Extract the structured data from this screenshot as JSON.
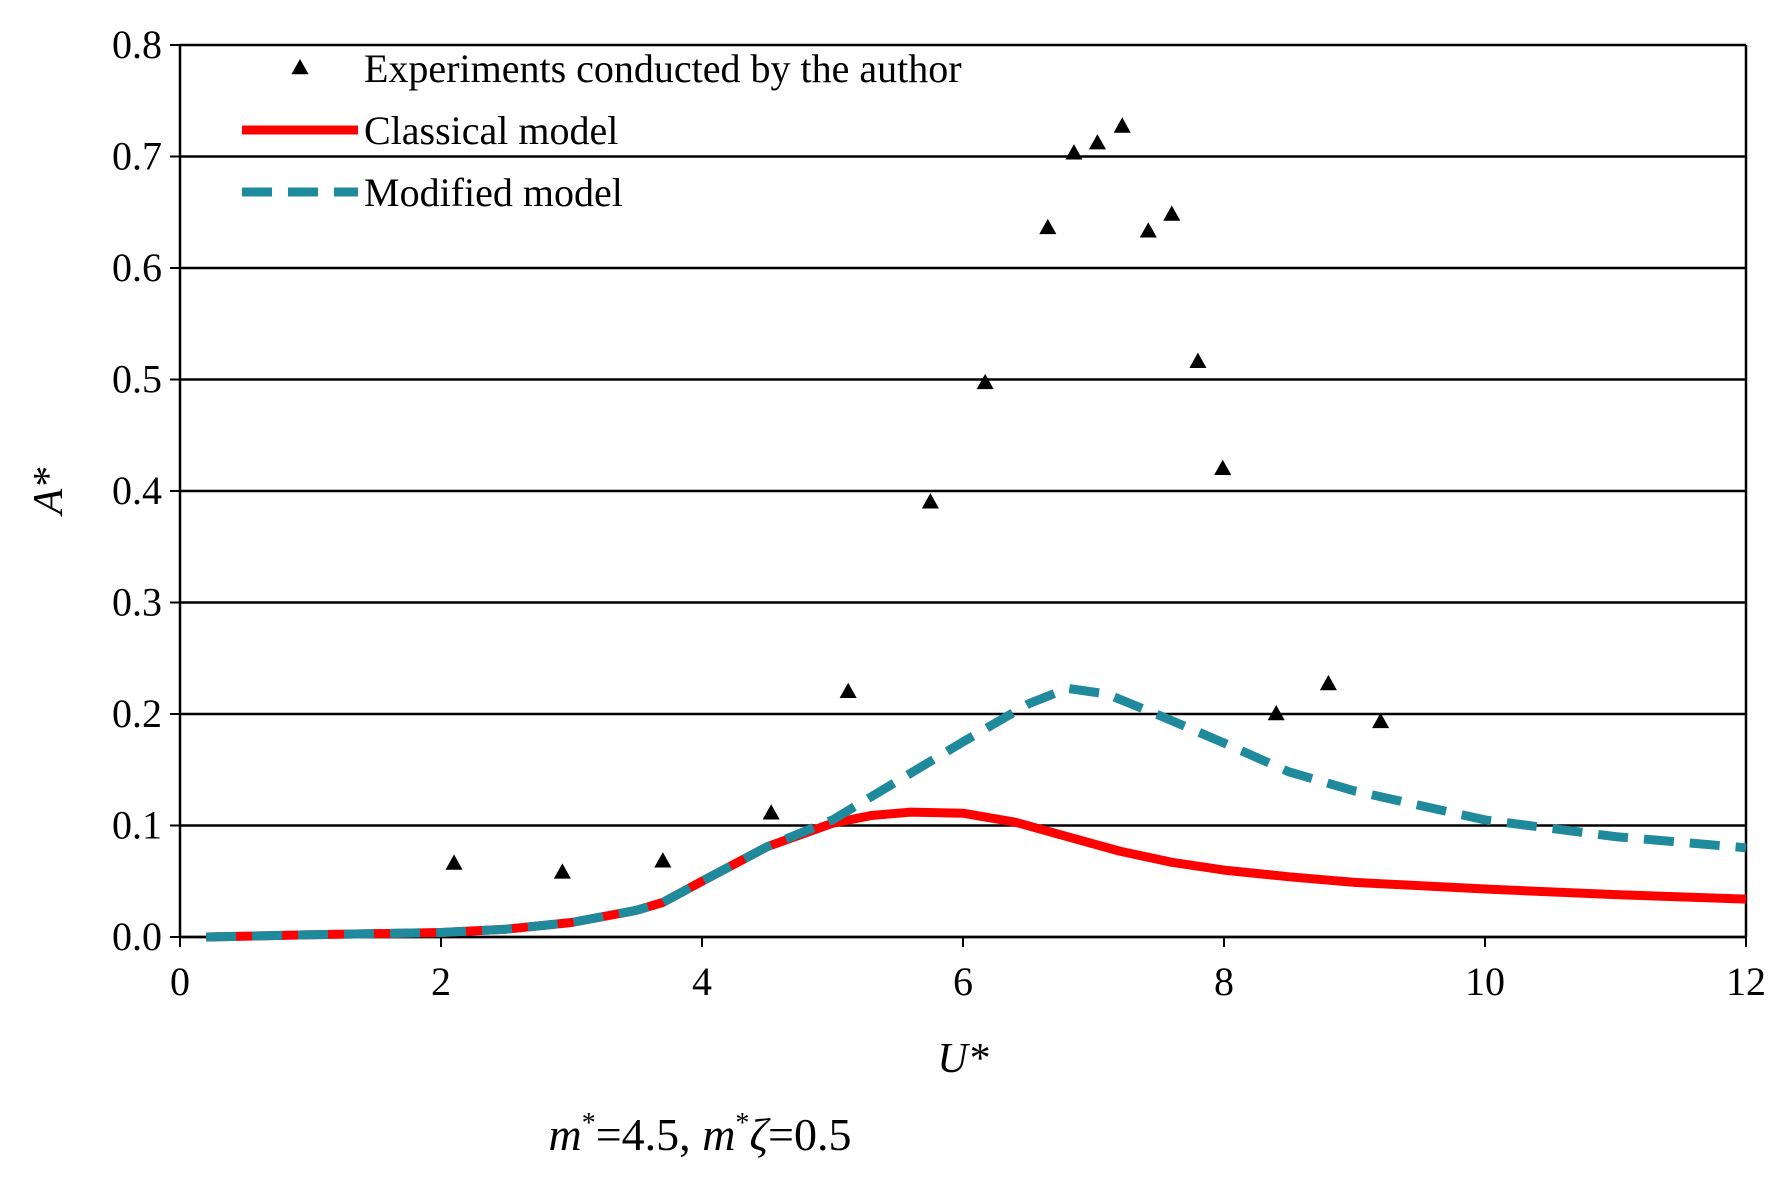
{
  "chart_data": {
    "type": "line",
    "title": "",
    "xlabel": "U*",
    "ylabel": "A*",
    "xlim": [
      0,
      12
    ],
    "ylim": [
      0,
      0.8
    ],
    "xticks": [
      "0",
      "2",
      "4",
      "6",
      "8",
      "10",
      "12"
    ],
    "yticks": [
      "0.0",
      "0.1",
      "0.2",
      "0.3",
      "0.4",
      "0.5",
      "0.6",
      "0.7",
      "0.8"
    ],
    "grid": "horizontal",
    "legend_position": "top-left",
    "caption": {
      "m_label": "m",
      "m_sup": "*",
      "m_value": "=4.5, ",
      "mz_label": "m",
      "mz_sup": "*",
      "zeta": "ζ",
      "mz_value": "=0.5"
    },
    "series": [
      {
        "name": "Experiments conducted by the author",
        "kind": "scatter",
        "marker": "triangle",
        "color": "#000000",
        "x": [
          2.1,
          2.93,
          3.7,
          4.53,
          5.12,
          5.75,
          6.17,
          6.65,
          6.85,
          7.03,
          7.22,
          7.42,
          7.6,
          7.8,
          7.99,
          8.4,
          8.8,
          9.2
        ],
        "y": [
          0.066,
          0.058,
          0.068,
          0.111,
          0.22,
          0.39,
          0.497,
          0.636,
          0.703,
          0.712,
          0.727,
          0.633,
          0.648,
          0.516,
          0.42,
          0.2,
          0.227,
          0.193
        ]
      },
      {
        "name": "Classical model",
        "kind": "line",
        "dash": "solid",
        "color": "#ff0000",
        "x": [
          0.2,
          1,
          2,
          2.5,
          3,
          3.5,
          3.7,
          4,
          4.5,
          5,
          5.3,
          5.6,
          6,
          6.4,
          6.8,
          7.2,
          7.6,
          8,
          8.5,
          9,
          10,
          11,
          12
        ],
        "y": [
          0.0,
          0.002,
          0.004,
          0.007,
          0.013,
          0.024,
          0.031,
          0.05,
          0.081,
          0.102,
          0.109,
          0.112,
          0.111,
          0.103,
          0.09,
          0.077,
          0.067,
          0.06,
          0.054,
          0.049,
          0.043,
          0.038,
          0.034
        ]
      },
      {
        "name": "Modified model",
        "kind": "line",
        "dash": "dashed",
        "color": "#1f8a9c",
        "x": [
          0.2,
          1,
          2,
          2.5,
          3,
          3.5,
          3.7,
          4,
          4.5,
          5,
          5.5,
          6,
          6.5,
          6.8,
          7.1,
          7.5,
          8,
          8.5,
          9,
          10,
          11,
          12
        ],
        "y": [
          0.0,
          0.002,
          0.004,
          0.007,
          0.013,
          0.024,
          0.031,
          0.05,
          0.081,
          0.105,
          0.14,
          0.175,
          0.209,
          0.223,
          0.218,
          0.199,
          0.174,
          0.148,
          0.131,
          0.105,
          0.09,
          0.08
        ]
      }
    ]
  }
}
